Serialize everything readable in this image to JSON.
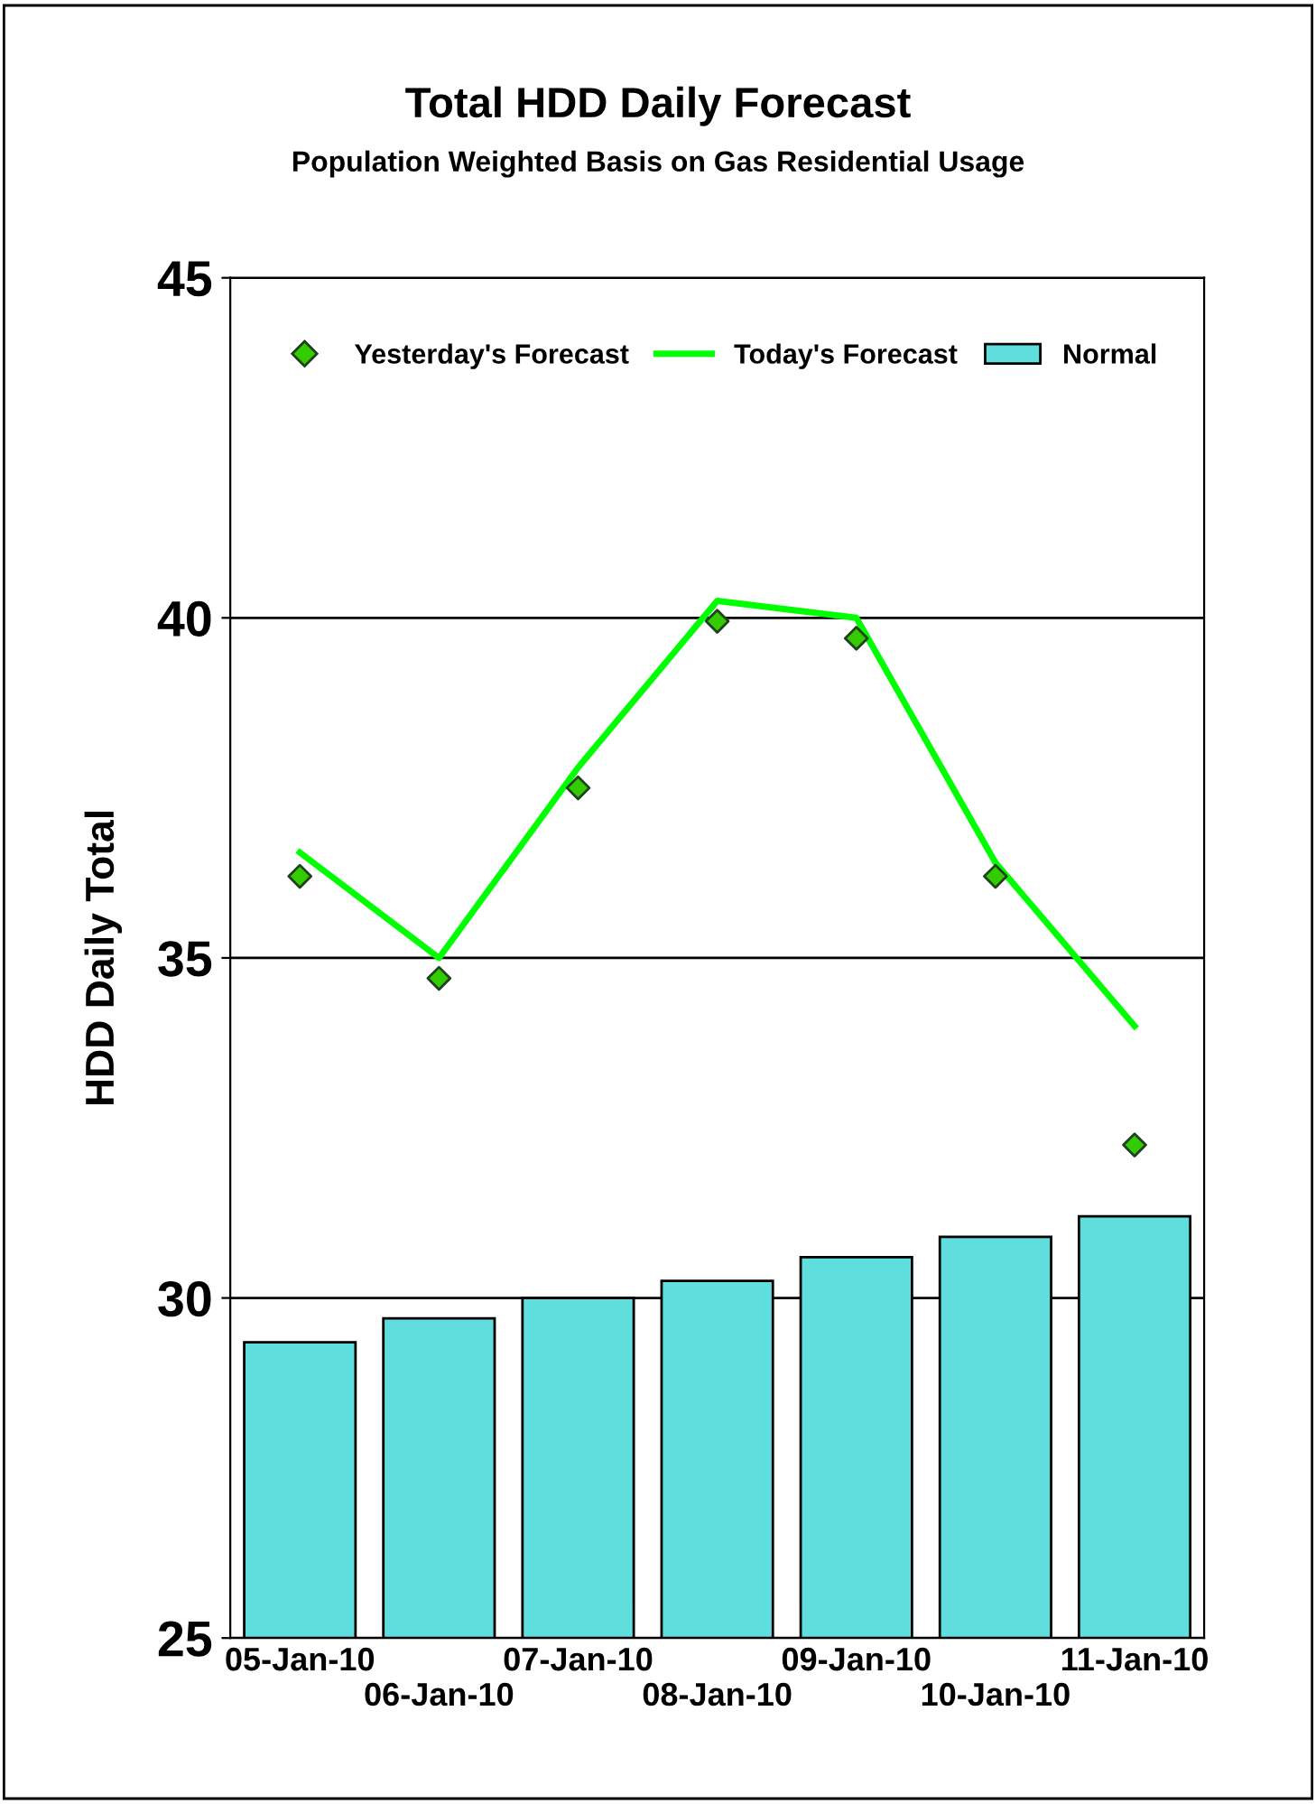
{
  "chart_data": {
    "type": "bar",
    "title": "Total HDD Daily Forecast",
    "subtitle": "Population Weighted Basis on Gas Residential Usage",
    "ylabel": "HDD Daily Total",
    "categories": [
      "05-Jan-10",
      "06-Jan-10",
      "07-Jan-10",
      "08-Jan-10",
      "09-Jan-10",
      "10-Jan-10",
      "11-Jan-10"
    ],
    "series": [
      {
        "name": "Yesterday's Forecast",
        "type": "scatter",
        "marker": "diamond",
        "color": "#33cc00",
        "values": [
          36.2,
          34.7,
          37.5,
          39.95,
          39.7,
          36.2,
          32.25
        ]
      },
      {
        "name": "Today's Forecast",
        "type": "line",
        "marker": "none",
        "color": "#00ff00",
        "values": [
          36.55,
          35.0,
          37.8,
          40.25,
          40.0,
          36.4,
          34.0
        ]
      },
      {
        "name": "Normal",
        "color": "#60dede",
        "values": [
          29.35,
          29.7,
          30.0,
          30.25,
          30.6,
          30.9,
          31.2
        ]
      }
    ],
    "ylim": [
      25,
      45
    ],
    "yticks": [
      25,
      30,
      35,
      40,
      45
    ],
    "grid": "y",
    "legend": "top"
  }
}
